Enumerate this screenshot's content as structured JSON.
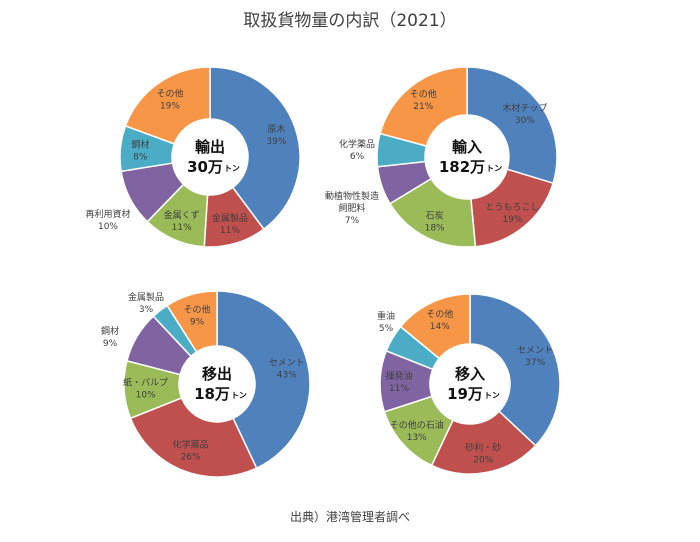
{
  "title": "取扱貨物量の内訳（2021）",
  "source": "出典）港湾管理者調べ",
  "chart_data": [
    {
      "type": "pie",
      "center_title": "輸出",
      "center_value": "30万",
      "center_unit": "トン",
      "slices": [
        {
          "name": "原木",
          "value": 39,
          "label": "39%",
          "color": "#4f81bd"
        },
        {
          "name": "金属製品",
          "value": 11,
          "label": "11%",
          "color": "#c0504d"
        },
        {
          "name": "金属くず",
          "value": 11,
          "label": "11%",
          "color": "#9bbb59"
        },
        {
          "name": "再利用資材",
          "value": 10,
          "label": "10%",
          "color": "#8064a2"
        },
        {
          "name": "鋼材",
          "value": 8,
          "label": "8%",
          "color": "#4bacc6"
        },
        {
          "name": "その他",
          "value": 19,
          "label": "19%",
          "color": "#f79646"
        }
      ]
    },
    {
      "type": "pie",
      "center_title": "輸入",
      "center_value": "182万",
      "center_unit": "トン",
      "slices": [
        {
          "name": "木材チップ",
          "value": 30,
          "label": "30%",
          "color": "#4f81bd"
        },
        {
          "name": "とうもろこし",
          "value": 19,
          "label": "19%",
          "color": "#c0504d"
        },
        {
          "name": "石炭",
          "value": 18,
          "label": "18%",
          "color": "#9bbb59"
        },
        {
          "name": "動植物性製造飼肥料",
          "value": 7,
          "label": "7%",
          "color": "#8064a2"
        },
        {
          "name": "化学薬品",
          "value": 6,
          "label": "6%",
          "color": "#4bacc6"
        },
        {
          "name": "その他",
          "value": 21,
          "label": "21%",
          "color": "#f79646"
        }
      ]
    },
    {
      "type": "pie",
      "center_title": "移出",
      "center_value": "18万",
      "center_unit": "トン",
      "slices": [
        {
          "name": "セメント",
          "value": 43,
          "label": "43%",
          "color": "#4f81bd"
        },
        {
          "name": "化学薬品",
          "value": 26,
          "label": "26%",
          "color": "#c0504d"
        },
        {
          "name": "紙・パルプ",
          "value": 10,
          "label": "10%",
          "color": "#9bbb59"
        },
        {
          "name": "鋼材",
          "value": 9,
          "label": "9%",
          "color": "#8064a2"
        },
        {
          "name": "金属製品",
          "value": 3,
          "label": "3%",
          "color": "#4bacc6"
        },
        {
          "name": "その他",
          "value": 9,
          "label": "9%",
          "color": "#f79646"
        }
      ]
    },
    {
      "type": "pie",
      "center_title": "移入",
      "center_value": "19万",
      "center_unit": "トン",
      "slices": [
        {
          "name": "セメント",
          "value": 37,
          "label": "37%",
          "color": "#4f81bd"
        },
        {
          "name": "砂利・砂",
          "value": 20,
          "label": "20%",
          "color": "#c0504d"
        },
        {
          "name": "その他の石油",
          "value": 13,
          "label": "13%",
          "color": "#9bbb59"
        },
        {
          "name": "揮発油",
          "value": 11,
          "label": "11%",
          "color": "#8064a2"
        },
        {
          "name": "重油",
          "value": 5,
          "label": "5%",
          "color": "#4bacc6"
        },
        {
          "name": "その他",
          "value": 14,
          "label": "14%",
          "color": "#f79646"
        }
      ]
    }
  ]
}
